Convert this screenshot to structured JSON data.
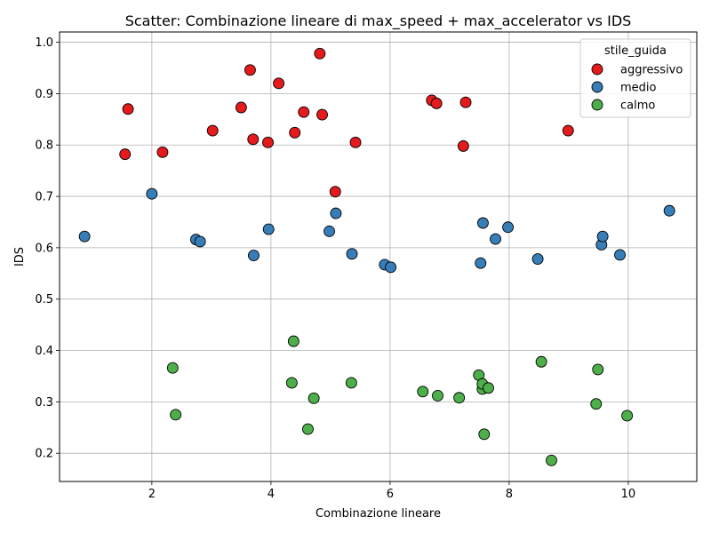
{
  "chart_data": {
    "type": "scatter",
    "title": "Scatter: Combinazione lineare di max_speed + max_accelerator vs IDS",
    "xlabel": "Combinazione lineare",
    "ylabel": "IDS",
    "xlim": [
      0.45,
      11.15
    ],
    "ylim": [
      0.145,
      1.02
    ],
    "xticks": [
      2,
      4,
      6,
      8,
      10
    ],
    "yticks": [
      0.2,
      0.3,
      0.4,
      0.5,
      0.6,
      0.7,
      0.8,
      0.9,
      1.0
    ],
    "xtick_labels": [
      "2",
      "4",
      "6",
      "8",
      "10"
    ],
    "ytick_labels": [
      "0.2",
      "0.3",
      "0.4",
      "0.5",
      "0.6",
      "0.7",
      "0.8",
      "0.9",
      "1.0"
    ],
    "grid": true,
    "legend": {
      "title": "stile_guida",
      "position": "top-right"
    },
    "series": [
      {
        "name": "aggressivo",
        "color": "#e41a1c",
        "points": [
          [
            1.55,
            0.782
          ],
          [
            1.6,
            0.87
          ],
          [
            2.18,
            0.786
          ],
          [
            3.02,
            0.828
          ],
          [
            3.5,
            0.873
          ],
          [
            3.65,
            0.946
          ],
          [
            3.7,
            0.811
          ],
          [
            3.95,
            0.805
          ],
          [
            4.13,
            0.92
          ],
          [
            4.4,
            0.824
          ],
          [
            4.55,
            0.864
          ],
          [
            4.82,
            0.978
          ],
          [
            4.86,
            0.859
          ],
          [
            5.08,
            0.709
          ],
          [
            5.42,
            0.805
          ],
          [
            6.7,
            0.887
          ],
          [
            6.78,
            0.881
          ],
          [
            7.23,
            0.798
          ],
          [
            7.27,
            0.883
          ],
          [
            8.99,
            0.828
          ]
        ]
      },
      {
        "name": "medio",
        "color": "#377eb8",
        "points": [
          [
            0.87,
            0.622
          ],
          [
            2.0,
            0.705
          ],
          [
            2.74,
            0.616
          ],
          [
            2.81,
            0.612
          ],
          [
            3.71,
            0.585
          ],
          [
            3.96,
            0.636
          ],
          [
            4.98,
            0.632
          ],
          [
            5.09,
            0.667
          ],
          [
            5.36,
            0.588
          ],
          [
            5.91,
            0.567
          ],
          [
            6.01,
            0.562
          ],
          [
            7.52,
            0.57
          ],
          [
            7.56,
            0.648
          ],
          [
            7.77,
            0.617
          ],
          [
            7.98,
            0.64
          ],
          [
            8.48,
            0.578
          ],
          [
            9.55,
            0.606
          ],
          [
            9.57,
            0.622
          ],
          [
            9.86,
            0.586
          ],
          [
            10.69,
            0.672
          ]
        ]
      },
      {
        "name": "calmo",
        "color": "#4daf4a",
        "points": [
          [
            2.35,
            0.366
          ],
          [
            2.4,
            0.275
          ],
          [
            4.35,
            0.337
          ],
          [
            4.38,
            0.418
          ],
          [
            4.62,
            0.247
          ],
          [
            4.72,
            0.307
          ],
          [
            5.35,
            0.337
          ],
          [
            6.55,
            0.32
          ],
          [
            6.8,
            0.312
          ],
          [
            7.16,
            0.308
          ],
          [
            7.49,
            0.352
          ],
          [
            7.55,
            0.325
          ],
          [
            7.55,
            0.335
          ],
          [
            7.58,
            0.237
          ],
          [
            7.65,
            0.327
          ],
          [
            8.54,
            0.378
          ],
          [
            8.71,
            0.186
          ],
          [
            9.46,
            0.296
          ],
          [
            9.49,
            0.363
          ],
          [
            9.98,
            0.273
          ]
        ]
      }
    ]
  }
}
